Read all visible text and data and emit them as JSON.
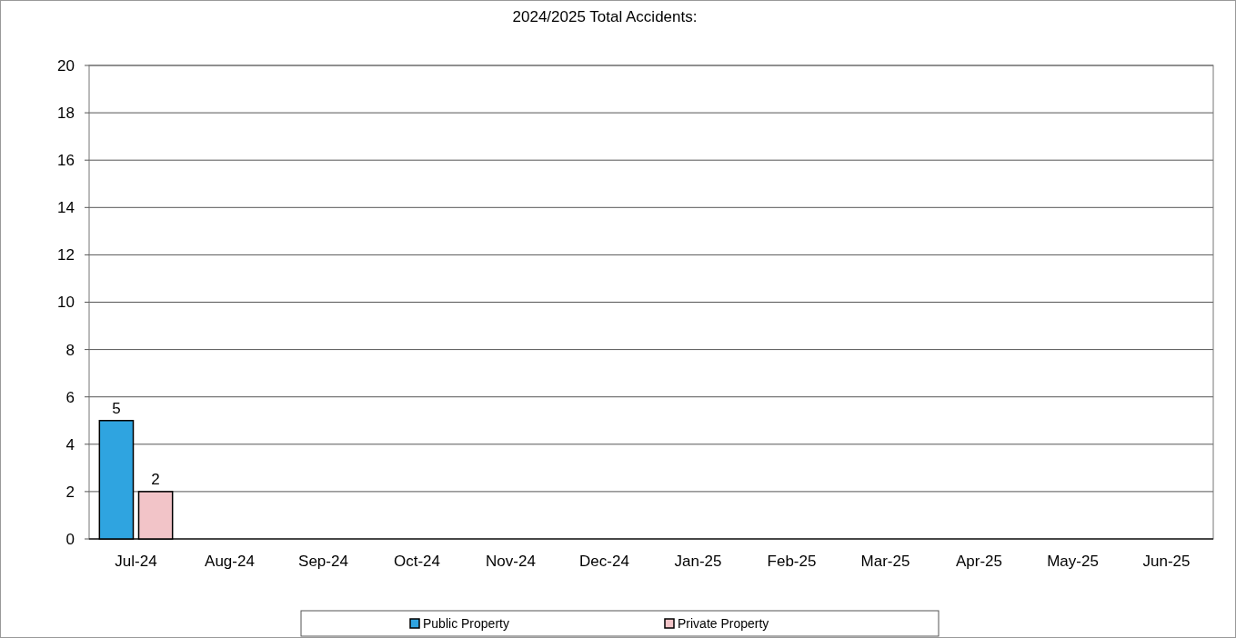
{
  "chart_data": {
    "type": "bar",
    "title": "2024/2025 Total Accidents:",
    "categories": [
      "Jul-24",
      "Aug-24",
      "Sep-24",
      "Oct-24",
      "Nov-24",
      "Dec-24",
      "Jan-25",
      "Feb-25",
      "Mar-25",
      "Apr-25",
      "May-25",
      "Jun-25"
    ],
    "series": [
      {
        "name": "Public Property",
        "color": "#2fa4e0",
        "values": [
          5,
          null,
          null,
          null,
          null,
          null,
          null,
          null,
          null,
          null,
          null,
          null
        ]
      },
      {
        "name": "Private Property",
        "color": "#f2c4c8",
        "values": [
          2,
          null,
          null,
          null,
          null,
          null,
          null,
          null,
          null,
          null,
          null,
          null
        ]
      }
    ],
    "ylim": [
      0,
      20
    ],
    "yticks": [
      0,
      2,
      4,
      6,
      8,
      10,
      12,
      14,
      16,
      18,
      20
    ],
    "grid": "y",
    "legend": "bottom",
    "data_labels": true
  }
}
